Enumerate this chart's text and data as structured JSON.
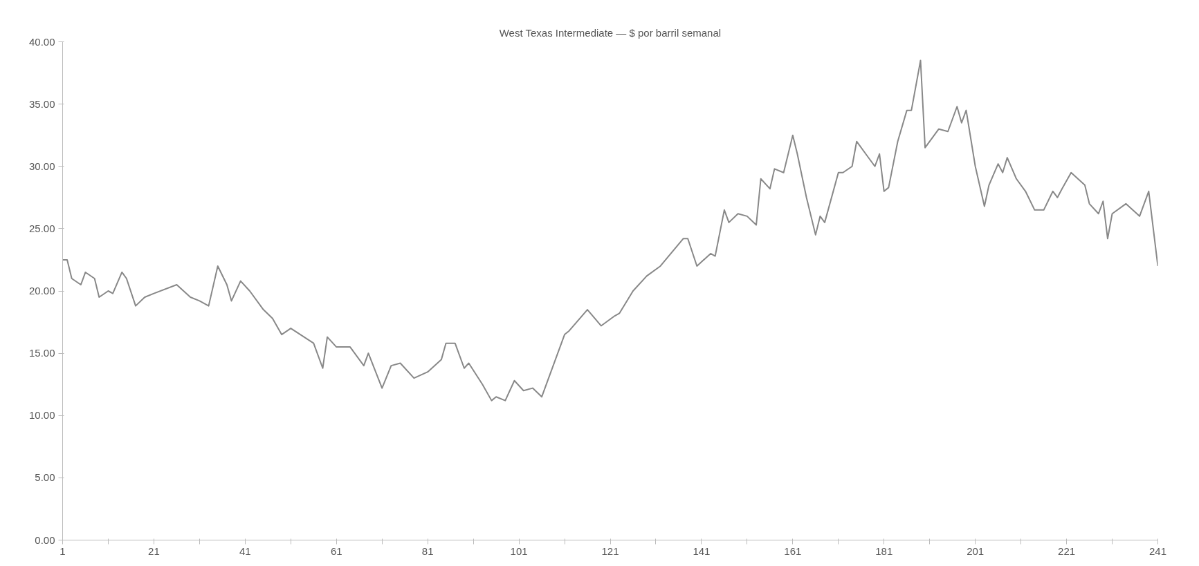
{
  "chart_data": {
    "type": "line",
    "title": "West Texas Intermediate — $ por barril semanal",
    "x": [
      1,
      2,
      3,
      5,
      6,
      8,
      9,
      11,
      12,
      14,
      15,
      17,
      19,
      21,
      26,
      29,
      31,
      33,
      35,
      37,
      38,
      40,
      42,
      45,
      47,
      49,
      51,
      56,
      58,
      59,
      61,
      64,
      67,
      68,
      71,
      73,
      75,
      78,
      81,
      84,
      85,
      87,
      89,
      90,
      93,
      95,
      96,
      98,
      100,
      102,
      104,
      106,
      107,
      109,
      111,
      112,
      116,
      119,
      122,
      123,
      126,
      129,
      132,
      137,
      138,
      140,
      143,
      144,
      146,
      147,
      149,
      151,
      153,
      154,
      156,
      157,
      159,
      161,
      162,
      164,
      166,
      167,
      168,
      171,
      172,
      174,
      175,
      177,
      179,
      180,
      181,
      182,
      184,
      186,
      187,
      189,
      190,
      193,
      195,
      197,
      198,
      199,
      201,
      203,
      204,
      206,
      207,
      208,
      210,
      212,
      214,
      216,
      218,
      219,
      220,
      222,
      225,
      226,
      228,
      229,
      230,
      231,
      234,
      237,
      239,
      241
    ],
    "values": [
      22.5,
      22.5,
      21,
      20.5,
      21.5,
      21,
      19.5,
      20,
      19.8,
      21.5,
      21,
      18.8,
      19.5,
      19.8,
      20.5,
      19.5,
      19.2,
      18.8,
      22,
      20.5,
      19.2,
      20.8,
      20,
      18.5,
      17.8,
      16.5,
      17,
      15.8,
      13.8,
      16.3,
      15.5,
      15.5,
      14,
      15,
      12.2,
      14,
      14.2,
      13,
      13.5,
      14.5,
      15.8,
      15.8,
      13.8,
      14.2,
      12.5,
      11.2,
      11.5,
      11.2,
      12.8,
      12,
      12.2,
      11.5,
      12.5,
      14.5,
      16.5,
      16.8,
      18.5,
      17.2,
      18,
      18.2,
      20,
      21.2,
      22,
      24.2,
      24.2,
      22,
      23,
      22.8,
      26.5,
      25.5,
      26.2,
      26,
      25.3,
      29,
      28.2,
      29.8,
      29.5,
      32.5,
      31,
      27.5,
      24.5,
      26,
      25.5,
      29.5,
      29.5,
      30,
      32,
      31,
      30,
      31,
      28,
      28.3,
      32,
      34.5,
      34.5,
      38.5,
      31.5,
      33,
      32.8,
      34.8,
      33.5,
      34.5,
      30,
      26.8,
      28.5,
      30.2,
      29.5,
      30.7,
      29,
      28,
      26.5,
      26.5,
      28,
      27.5,
      28.2,
      29.5,
      28.5,
      27,
      26.2,
      27.2,
      24.2,
      26.2,
      27,
      26,
      28,
      22
    ],
    "color": "#888888",
    "xlim": [
      1,
      241
    ],
    "xticks": [
      1,
      {
        "value": 11,
        "label": null
      },
      21,
      {
        "value": 31,
        "label": null
      },
      41,
      {
        "value": 51,
        "label": null
      },
      61,
      {
        "value": 71,
        "label": null
      },
      81,
      {
        "value": 91,
        "label": null
      },
      101,
      {
        "value": 111,
        "label": null
      },
      121,
      {
        "value": 131,
        "label": null
      },
      141,
      {
        "value": 151,
        "label": null
      },
      161,
      {
        "value": 171,
        "label": null
      },
      181,
      {
        "value": 191,
        "label": null
      },
      201,
      {
        "value": 211,
        "label": null
      },
      221,
      {
        "value": 231,
        "label": null
      },
      241
    ],
    "ylim": [
      0,
      40
    ],
    "yticks": [
      {
        "value": 0,
        "label": "0.00"
      },
      {
        "value": 5,
        "label": "5.00"
      },
      {
        "value": 10,
        "label": "10.00"
      },
      {
        "value": 15,
        "label": "15.00"
      },
      {
        "value": 20,
        "label": "20.00"
      },
      {
        "value": 25,
        "label": "25.00"
      },
      {
        "value": 30,
        "label": "30.00"
      },
      {
        "value": 35,
        "label": "35.00"
      },
      {
        "value": 40,
        "label": "40.00"
      }
    ],
    "grid": false,
    "marker": "none",
    "line_style": "solid"
  }
}
